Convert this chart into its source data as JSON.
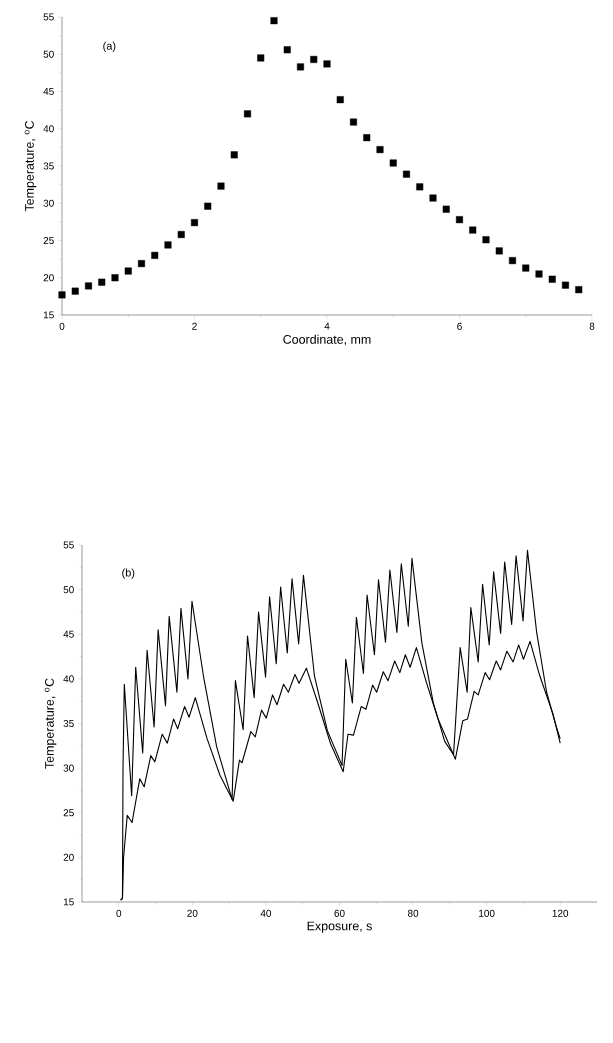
{
  "chart_data": [
    {
      "type": "scatter",
      "xlabel": "Coordinate, mm",
      "ylabel": "Temperature, $^{o}$C",
      "annotations": [
        "(a)"
      ],
      "marker": "square",
      "color": "#000000",
      "x": [
        0,
        0.2,
        0.4,
        0.6,
        0.8,
        1.0,
        1.2,
        1.4,
        1.6,
        1.8,
        2.0,
        2.2,
        2.4,
        2.6,
        2.8,
        3.0,
        3.2,
        3.4,
        3.6,
        3.8,
        4.0,
        4.2,
        4.4,
        4.6,
        4.8,
        5.0,
        5.2,
        5.4,
        5.6,
        5.8,
        6.0,
        6.2,
        6.4,
        6.6,
        6.8,
        7.0,
        7.2,
        7.4,
        7.6,
        7.8
      ],
      "values": [
        17.7,
        18.2,
        18.9,
        19.4,
        20.0,
        20.9,
        21.9,
        23.0,
        24.4,
        25.8,
        27.4,
        29.6,
        32.3,
        36.5,
        42.0,
        49.5,
        54.5,
        50.6,
        48.3,
        49.3,
        48.7,
        43.9,
        40.9,
        38.8,
        37.2,
        35.4,
        33.9,
        32.2,
        30.7,
        29.2,
        27.8,
        26.4,
        25.1,
        23.6,
        22.3,
        21.3,
        20.5,
        19.8,
        19.0,
        18.4
      ],
      "xlim": [
        0,
        8
      ],
      "ylim": [
        15,
        55
      ],
      "xticks": [
        0,
        2,
        4,
        6,
        8
      ],
      "yticks": [
        15,
        20,
        25,
        30,
        35,
        40,
        45,
        50,
        55
      ]
    },
    {
      "type": "line",
      "xlabel": "Exposure, s",
      "ylabel": "Temperature, $^{o}$C",
      "annotations": [
        "(b)"
      ],
      "series": [
        {
          "color": "#000000",
          "x": [
            0.5,
            1.0,
            1.15,
            1.5,
            3.5,
            4.6,
            6.5,
            7.7,
            9.6,
            10.7,
            12.7,
            13.7,
            15.8,
            16.9,
            18.8,
            19.9,
            23.1,
            26.6,
            30.8,
            31.7,
            33.8,
            35.0,
            36.8,
            38.0,
            39.9,
            41.0,
            42.8,
            44.0,
            45.8,
            47.1,
            48.9,
            50.2,
            53.2,
            56.7,
            60.7,
            61.7,
            63.5,
            64.6,
            66.5,
            67.5,
            69.5,
            70.6,
            72.5,
            73.7,
            75.6,
            76.8,
            78.7,
            79.7,
            82.4,
            85.5,
            88.6,
            91.0,
            92.8,
            94.7,
            95.7,
            97.7,
            98.9,
            100.7,
            101.9,
            103.8,
            104.9,
            106.8,
            108.0,
            109.9,
            111.1,
            113.6,
            116.3,
            118.9,
            120.0
          ],
          "values": [
            15.2,
            15.4,
            30.0,
            39.4,
            26.9,
            41.3,
            31.7,
            43.2,
            34.6,
            45.5,
            37.0,
            47.0,
            38.5,
            47.9,
            40.0,
            48.7,
            40.1,
            32.4,
            26.5,
            39.8,
            34.3,
            44.8,
            37.9,
            47.5,
            40.2,
            49.2,
            41.7,
            50.3,
            42.9,
            51.2,
            43.9,
            51.6,
            40.3,
            34.2,
            30.3,
            42.2,
            37.3,
            46.9,
            40.6,
            49.4,
            42.7,
            51.1,
            44.1,
            52.2,
            45.2,
            52.9,
            45.9,
            53.5,
            44.0,
            37.3,
            33.0,
            31.5,
            43.5,
            38.5,
            48.0,
            41.9,
            50.6,
            43.8,
            52.0,
            45.1,
            53.1,
            46.1,
            53.8,
            46.5,
            54.4,
            45.2,
            38.5,
            34.7,
            33.3
          ]
        },
        {
          "color": "#000000",
          "x": [
            0.5,
            1.0,
            1.3,
            2.3,
            3.6,
            5.7,
            6.9,
            8.7,
            9.8,
            11.8,
            13.2,
            14.9,
            16.0,
            17.9,
            19.1,
            20.8,
            24.0,
            27.5,
            31.1,
            32.8,
            33.5,
            35.9,
            37.1,
            38.8,
            40.1,
            41.8,
            43.0,
            44.8,
            46.1,
            47.9,
            49.0,
            51.0,
            54.1,
            57.6,
            61.0,
            62.3,
            63.8,
            65.9,
            67.2,
            69.0,
            70.1,
            71.9,
            73.2,
            75.0,
            76.4,
            77.9,
            79.2,
            80.9,
            83.7,
            86.8,
            91.5,
            93.5,
            94.8,
            96.6,
            97.7,
            99.6,
            100.8,
            102.6,
            103.8,
            105.5,
            107.2,
            108.7,
            110.0,
            111.8,
            114.4,
            118.0,
            120.0
          ],
          "values": [
            15.2,
            15.4,
            20.0,
            24.7,
            23.9,
            28.8,
            27.9,
            31.4,
            30.7,
            33.8,
            32.8,
            35.5,
            34.4,
            36.9,
            35.7,
            37.9,
            33.3,
            29.2,
            26.3,
            30.9,
            30.6,
            34.1,
            33.5,
            36.5,
            35.6,
            38.2,
            37.1,
            39.4,
            38.5,
            40.5,
            39.5,
            41.2,
            37.3,
            32.7,
            29.6,
            33.8,
            33.7,
            36.9,
            36.6,
            39.3,
            38.5,
            40.8,
            39.8,
            42.0,
            40.7,
            42.7,
            41.3,
            43.5,
            39.5,
            35.5,
            31.0,
            35.3,
            35.5,
            38.6,
            38.2,
            40.7,
            39.9,
            42.0,
            41.0,
            43.1,
            41.9,
            43.8,
            42.2,
            44.2,
            40.4,
            36.1,
            32.8
          ]
        }
      ],
      "xlim": [
        -10,
        130
      ],
      "ylim": [
        15,
        55
      ],
      "xticks": [
        0,
        20,
        40,
        60,
        80,
        100,
        120
      ],
      "yticks": [
        15,
        20,
        25,
        30,
        35,
        40,
        45,
        50,
        55
      ]
    }
  ]
}
